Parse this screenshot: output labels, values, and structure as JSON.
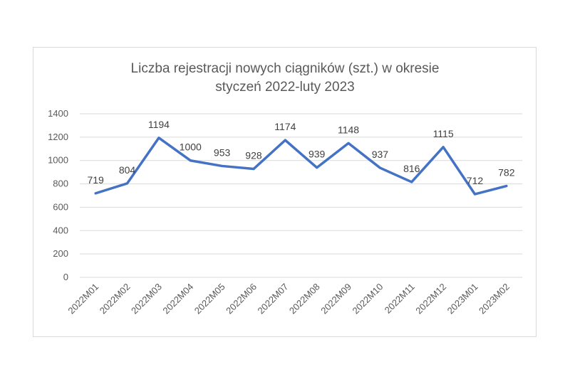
{
  "chart_data": {
    "type": "line",
    "title_lines": [
      "Liczba rejestracji nowych ciągników (szt.) w okresie",
      "styczeń 2022-luty 2023"
    ],
    "categories": [
      "2022M01",
      "2022M02",
      "2022M03",
      "2022M04",
      "2022M05",
      "2022M06",
      "2022M07",
      "2022M08",
      "2022M09",
      "2022M10",
      "2022M11",
      "2022M12",
      "2023M01",
      "2023M02"
    ],
    "series": [
      {
        "values": [
          719,
          804,
          1194,
          1000,
          953,
          928,
          1174,
          939,
          1148,
          937,
          816,
          1115,
          712,
          782
        ],
        "color": "#4472c4"
      }
    ],
    "y_ticks": [
      0,
      200,
      400,
      600,
      800,
      1000,
      1200,
      1400
    ],
    "ylim": [
      0,
      1400
    ],
    "grid": true,
    "data_labels": true,
    "legend": "none"
  }
}
